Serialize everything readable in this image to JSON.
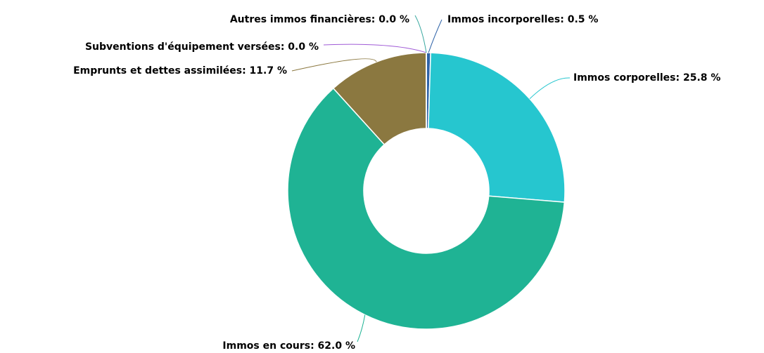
{
  "chart_data": {
    "type": "donut",
    "values": [
      0.5,
      25.8,
      62.0,
      11.7,
      0.0,
      0.0
    ],
    "value_labels": [
      "Immos incorporelles: 0.5 %",
      "Immos corporelles: 25.8 %",
      "Immos en cours: 62.0 %",
      "Emprunts et dettes assimilées: 11.7 %",
      "Subventions d'équipement versées: 0.0 %",
      "Autres immos financières: 0.0 %"
    ],
    "colors": [
      "#2f63a8",
      "#26c6cf",
      "#1fb394",
      "#8b7840",
      "#a05bd6",
      "#3aa9a0"
    ]
  }
}
